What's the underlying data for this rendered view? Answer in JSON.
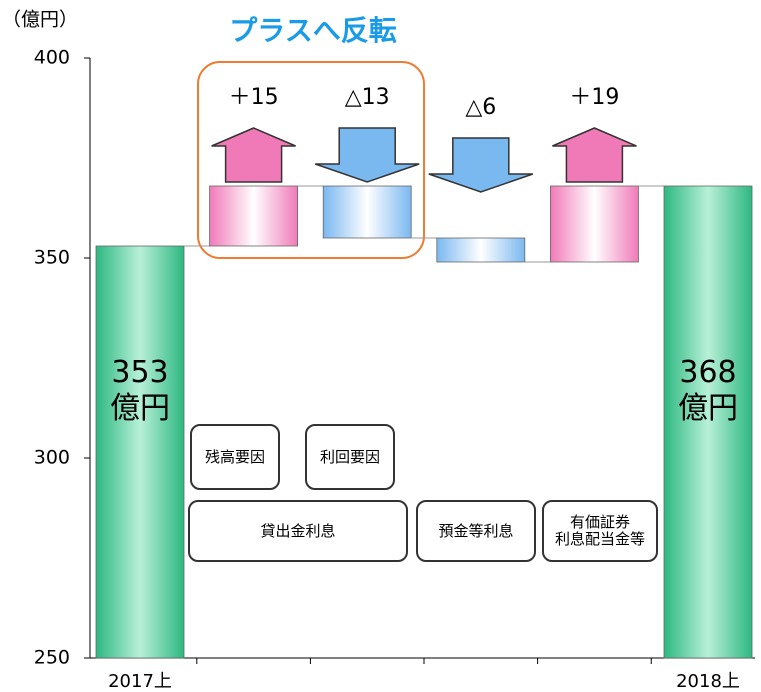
{
  "chart_data": {
    "type": "waterfall",
    "title": "プラスへ反転",
    "y_unit": "（億円）",
    "categories": [
      "2017上",
      null,
      null,
      null,
      null,
      "2018上"
    ],
    "values": [
      353,
      15,
      -13,
      -6,
      19,
      368
    ],
    "value_labels": [
      "353\n億円",
      "＋15",
      "△13",
      "△6",
      "＋19",
      "368\n億円"
    ],
    "totals": [
      true,
      false,
      false,
      false,
      false,
      true
    ],
    "colors": {
      "total": "#2db880",
      "increase": "#f07ab8",
      "decrease": "#7ab8f0"
    },
    "ylim": [
      250,
      400
    ],
    "yticks": [
      250,
      300,
      350,
      400
    ],
    "boxes": [
      "残高要因",
      "利回要因",
      "貸出金利息",
      "預金等利息",
      "有価証券\n利息配当金等"
    ]
  }
}
